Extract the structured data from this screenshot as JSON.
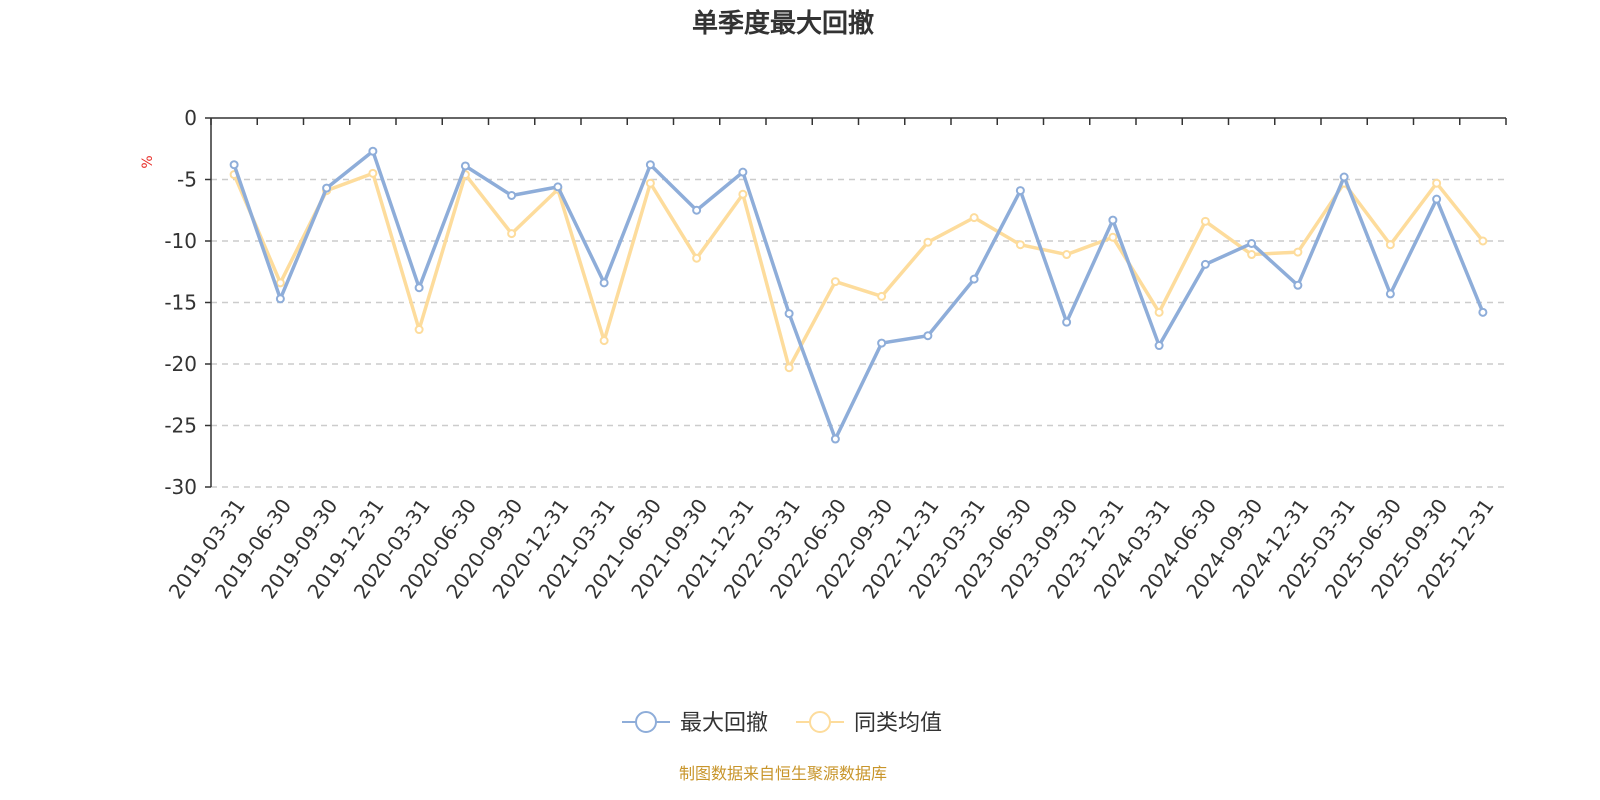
{
  "chart_data": {
    "type": "line",
    "title": "单季度最大回撤",
    "ylabel": "%",
    "ylim": [
      -30,
      0
    ],
    "yticks": [
      0,
      -5,
      -10,
      -15,
      -20,
      -25,
      -30
    ],
    "grid": true,
    "legend_position": "bottom",
    "categories": [
      "2019-03-31",
      "2019-06-30",
      "2019-09-30",
      "2019-12-31",
      "2020-03-31",
      "2020-06-30",
      "2020-09-30",
      "2020-12-31",
      "2021-03-31",
      "2021-06-30",
      "2021-09-30",
      "2021-12-31",
      "2022-03-31",
      "2022-06-30",
      "2022-09-30",
      "2022-12-31",
      "2023-03-31",
      "2023-06-30",
      "2023-09-30",
      "2023-12-31",
      "2024-03-31",
      "2024-06-30",
      "2024-09-30",
      "2024-12-31",
      "2025-03-31",
      "2025-06-30",
      "2025-09-30",
      "2025-12-31"
    ],
    "series": [
      {
        "name": "最大回撤",
        "color": "#8eadd9",
        "values": [
          -3.8,
          -14.7,
          -5.7,
          -2.7,
          -13.8,
          -3.9,
          -6.3,
          -5.6,
          -13.4,
          -3.8,
          -7.5,
          -4.4,
          -15.9,
          -26.1,
          -18.3,
          -17.7,
          -13.1,
          -5.9,
          -16.6,
          -8.3,
          -18.5,
          -11.9,
          -10.2,
          -13.6,
          -4.8,
          -14.3,
          -6.6,
          -15.8
        ]
      },
      {
        "name": "同类均值",
        "color": "#fddc9c",
        "values": [
          -4.6,
          -13.4,
          -5.9,
          -4.5,
          -17.2,
          -4.6,
          -9.4,
          -5.8,
          -18.1,
          -5.3,
          -11.4,
          -6.2,
          -20.3,
          -13.3,
          -14.5,
          -10.1,
          -8.1,
          -10.3,
          -11.1,
          -9.7,
          -15.8,
          -8.4,
          -11.1,
          -10.9,
          -5.3,
          -10.3,
          -5.3,
          -10.0
        ]
      }
    ]
  },
  "colors": {
    "axis": "#333333",
    "grid": "#cccccc",
    "unit": "#e8302b",
    "source": "#c8952a"
  },
  "source_text": "制图数据来自恒生聚源数据库"
}
